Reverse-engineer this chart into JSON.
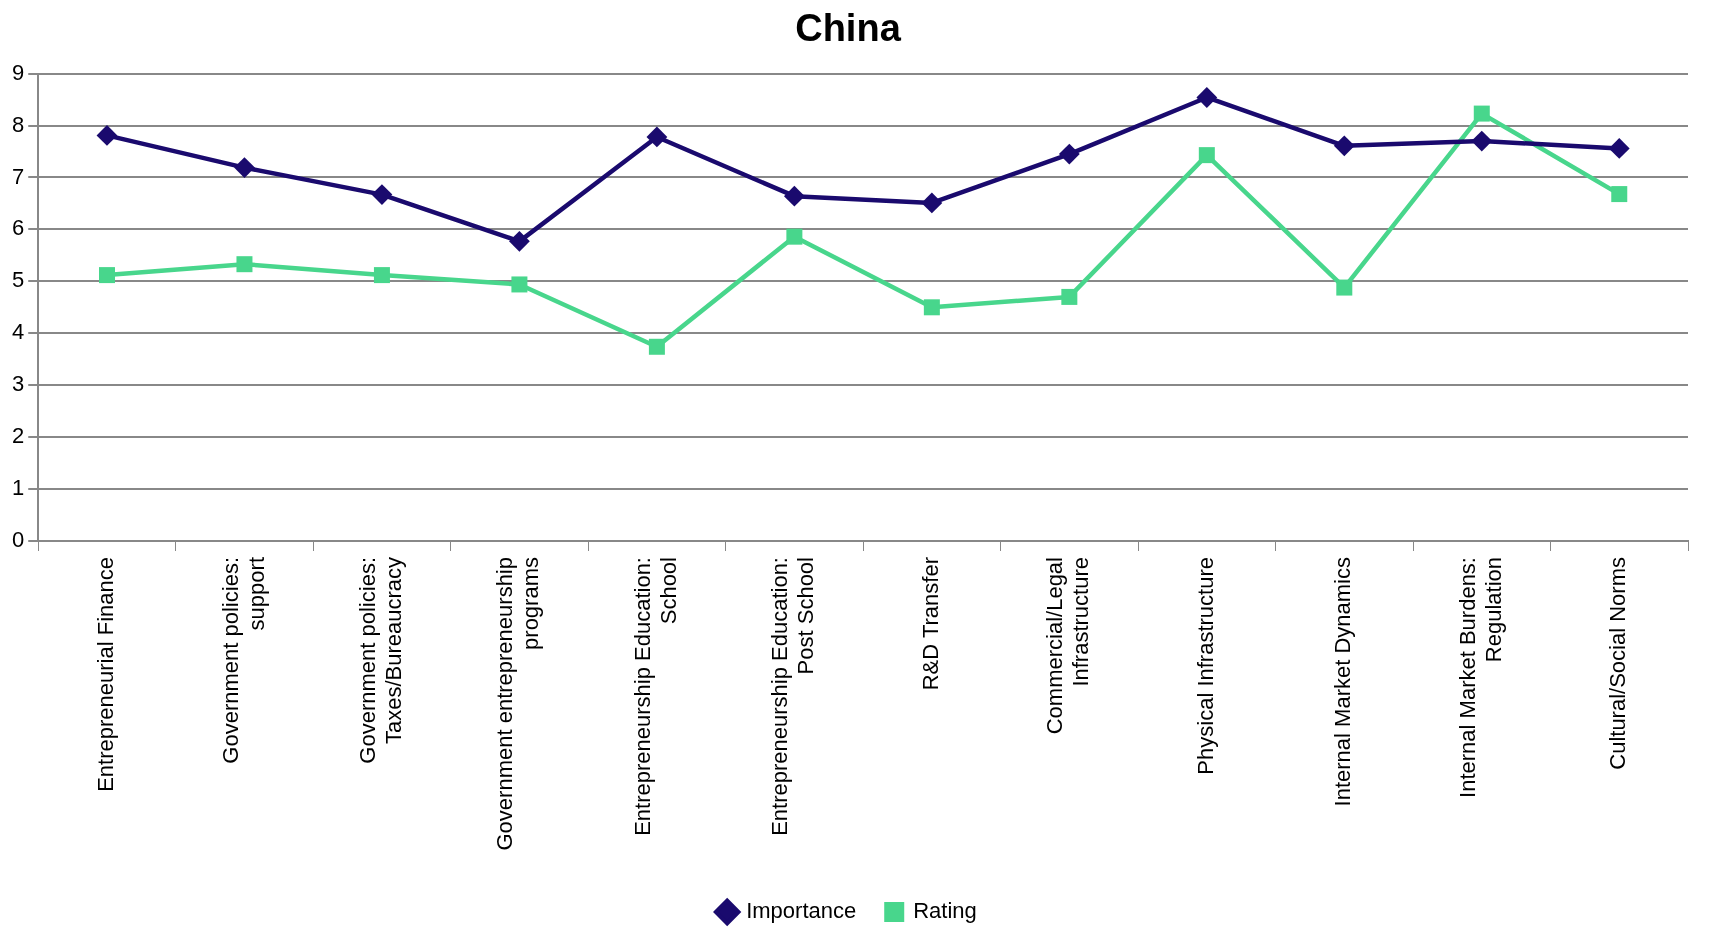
{
  "chart_data": {
    "type": "line",
    "title": "China",
    "categories": [
      "Entrepreneurial Finance",
      "Government policies: support",
      "Government policies: Taxes/Bureaucracy",
      "Government entrepreneurship programs",
      "Entrepreneurship Education: School",
      "Entrepreneurship Education: Post School",
      "R&D Transfer",
      "Commercial/Legal Infrastructure",
      "Physical Infrastructure",
      "Internal Market Dynamics",
      "Internal Market Burdens: Regulation",
      "Cultural/Social Norms"
    ],
    "series": [
      {
        "name": "Importance",
        "color": "#1a0a6e",
        "marker": "diamond",
        "values": [
          7.81,
          7.19,
          6.67,
          5.77,
          7.78,
          6.64,
          6.51,
          7.45,
          8.54,
          7.61,
          7.7,
          7.56
        ]
      },
      {
        "name": "Rating",
        "color": "#48d68c",
        "marker": "square",
        "values": [
          5.12,
          5.33,
          5.12,
          4.94,
          3.74,
          5.86,
          4.5,
          4.7,
          7.43,
          4.88,
          8.23,
          6.68
        ]
      }
    ],
    "ylim": [
      0,
      9
    ],
    "yticks": [
      0,
      1,
      2,
      3,
      4,
      5,
      6,
      7,
      8,
      9
    ],
    "grid": "y",
    "legend": "bottom",
    "line_style": "solid"
  }
}
